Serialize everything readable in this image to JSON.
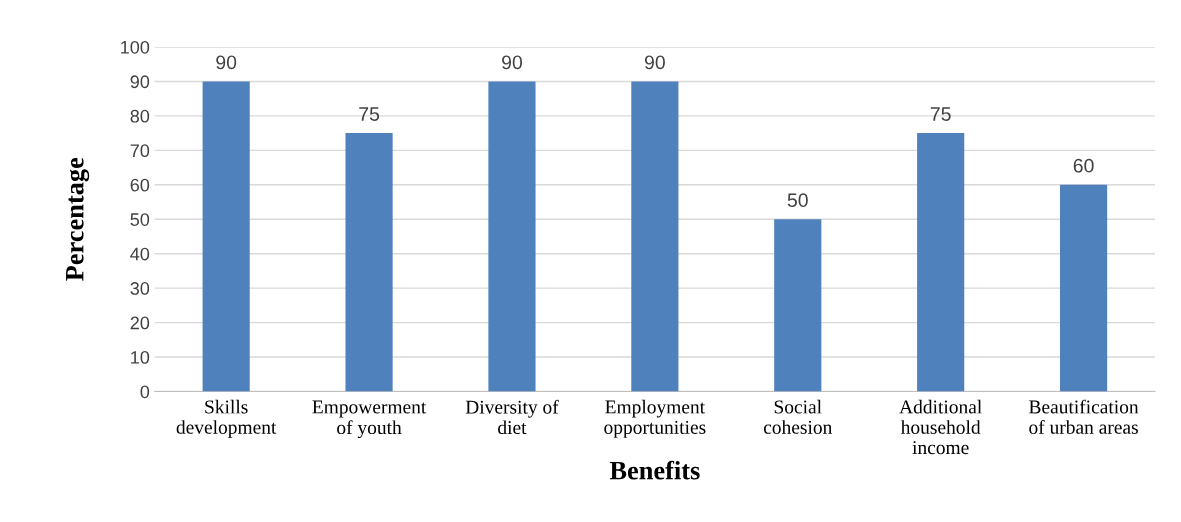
{
  "chart_data": {
    "type": "bar",
    "xlabel": "Benefits",
    "ylabel": "Percentage",
    "categories": [
      "Skills\ndevelopment",
      "Empowerment\nof youth",
      "Diversity of\ndiet",
      "Employment\nopportunities",
      "Social\ncohesion",
      "Additional\nhousehold\nincome",
      "Beautification\nof urban areas"
    ],
    "values": [
      90,
      75,
      90,
      90,
      50,
      75,
      60
    ],
    "color": "#4f81bd",
    "ylim": [
      0,
      100
    ],
    "yticks": [
      0,
      10,
      20,
      30,
      40,
      50,
      60,
      70,
      80,
      90,
      100
    ],
    "grid": "y",
    "data_labels": true
  }
}
